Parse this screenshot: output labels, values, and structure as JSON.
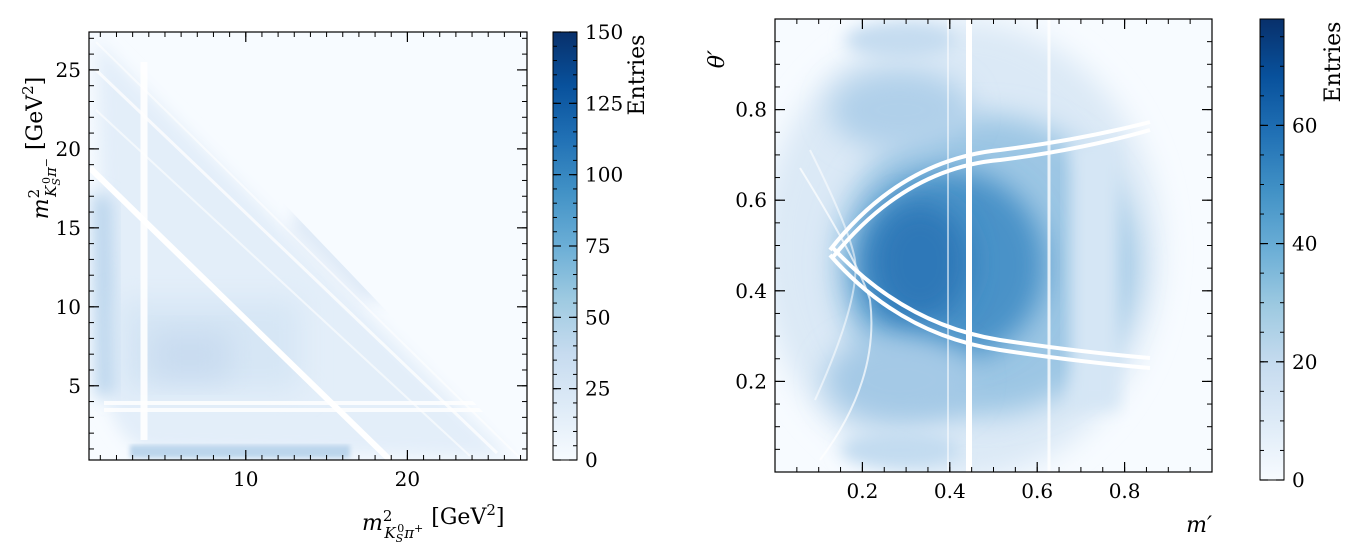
{
  "chart_data": [
    {
      "type": "heatmap",
      "title": "",
      "xlabel": "m²(K⁰S π⁺) [GeV²]",
      "ylabel": "m²(K⁰S π⁻) [GeV²]",
      "xlabel_parts": {
        "m": "m",
        "sup": "2",
        "sub_k": "K",
        "sub_s": "S",
        "sub_0": "0",
        "sub_pi": "π",
        "sub_charge": "+",
        "unit": "[GeV",
        "unit_sup": "2",
        "unit_close": "]"
      },
      "ylabel_parts": {
        "m": "m",
        "sup": "2",
        "sub_k": "K",
        "sub_s": "S",
        "sub_0": "0",
        "sub_pi": "π",
        "sub_charge": "−",
        "unit": "[GeV",
        "unit_sup": "2",
        "unit_close": "]"
      },
      "xlim": [
        0.3,
        27.4
      ],
      "ylim": [
        0.3,
        27.4
      ],
      "x_ticks": [
        10,
        20
      ],
      "x_tick_labels": [
        "10",
        "20"
      ],
      "y_ticks": [
        5,
        10,
        15,
        20,
        25
      ],
      "y_tick_labels": [
        "5",
        "10",
        "15",
        "20",
        "25"
      ],
      "colorbar": {
        "label": "Entries",
        "range": [
          0,
          150
        ],
        "ticks": [
          0,
          25,
          50,
          75,
          100,
          125,
          150
        ],
        "tick_labels": [
          "0",
          "25",
          "50",
          "75",
          "100",
          "125",
          "150"
        ],
        "colors": [
          "#f7fbff",
          "#deebf7",
          "#c6dbef",
          "#9ecae1",
          "#6baed6",
          "#4292c6",
          "#2171b5",
          "#08519c",
          "#08306b"
        ]
      }
    },
    {
      "type": "heatmap",
      "title": "",
      "xlabel": "m′",
      "ylabel": "θ′",
      "xlim": [
        0,
        1
      ],
      "ylim": [
        0,
        1
      ],
      "x_ticks": [
        0.2,
        0.4,
        0.6,
        0.8
      ],
      "x_tick_labels": [
        "0.2",
        "0.4",
        "0.6",
        "0.8"
      ],
      "y_ticks": [
        0.2,
        0.4,
        0.6,
        0.8
      ],
      "y_tick_labels": [
        "0.2",
        "0.4",
        "0.6",
        "0.8"
      ],
      "colorbar": {
        "label": "Entries",
        "range": [
          0,
          78
        ],
        "ticks": [
          0,
          20,
          40,
          60
        ],
        "tick_labels": [
          "0",
          "20",
          "40",
          "60"
        ],
        "colors": [
          "#f7fbff",
          "#deebf7",
          "#c6dbef",
          "#9ecae1",
          "#6baed6",
          "#4292c6",
          "#2171b5",
          "#08519c",
          "#08306b"
        ]
      }
    }
  ]
}
